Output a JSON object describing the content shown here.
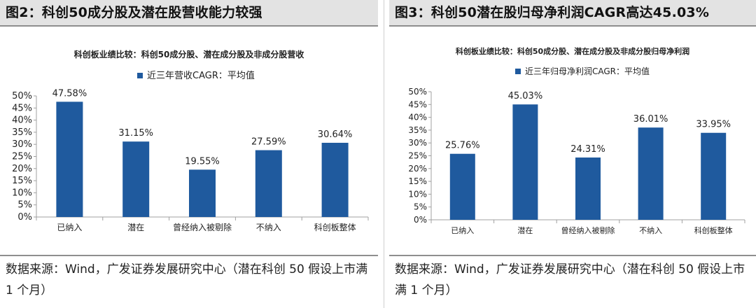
{
  "panels": [
    {
      "title": "图2：科创50成分股及潜在股营收能力较强",
      "source": "数据来源：Wind，广发证券发展研究中心（潜在科创 50 假设上市满 1 个月）"
    },
    {
      "title": "图3：科创50潜在股归母净利润CAGR高达45.03%",
      "source": "数据来源：Wind，广发证券发展研究中心（潜在科创 50 假设上市满 1 个月）"
    }
  ],
  "chart_data": [
    {
      "type": "bar",
      "title": "科创板业绩比较：科创50成分股、潜在成分股及非成分股营收",
      "categories": [
        "已纳入",
        "潜在",
        "曾经纳入被剔除",
        "不纳入",
        "科创板整体"
      ],
      "series": [
        {
          "name": "近三年营收CAGR：平均值",
          "values": [
            47.58,
            31.15,
            19.55,
            27.59,
            30.64
          ]
        }
      ],
      "value_labels": [
        "47.58%",
        "31.15%",
        "19.55%",
        "27.59%",
        "30.64%"
      ],
      "yticks": [
        "0%",
        "5%",
        "10%",
        "15%",
        "20%",
        "25%",
        "30%",
        "35%",
        "40%",
        "45%",
        "50%"
      ],
      "ylim": [
        0,
        50
      ],
      "xlabel": "",
      "ylabel": "",
      "legend_position": "top",
      "grid": false,
      "colors": {
        "bar": "#1f5a9e",
        "axis": "#a0a0a0",
        "text": "#222222"
      }
    },
    {
      "type": "bar",
      "title": "科创板业绩比较：科创50成分股、潜在成分股及非成分股归母净利润",
      "categories": [
        "已纳入",
        "潜在",
        "曾经纳入被剔除",
        "不纳入",
        "科创板整体"
      ],
      "series": [
        {
          "name": "近三年归母净利润CAGR：平均值",
          "values": [
            25.76,
            45.03,
            24.31,
            36.01,
            33.95
          ]
        }
      ],
      "value_labels": [
        "25.76%",
        "45.03%",
        "24.31%",
        "36.01%",
        "33.95%"
      ],
      "yticks": [
        "0%",
        "5%",
        "10%",
        "15%",
        "20%",
        "25%",
        "30%",
        "35%",
        "40%",
        "45%",
        "50%"
      ],
      "ylim": [
        0,
        50
      ],
      "xlabel": "",
      "ylabel": "",
      "legend_position": "top",
      "grid": false,
      "colors": {
        "bar": "#1f5a9e",
        "axis": "#a0a0a0",
        "text": "#222222"
      }
    }
  ]
}
